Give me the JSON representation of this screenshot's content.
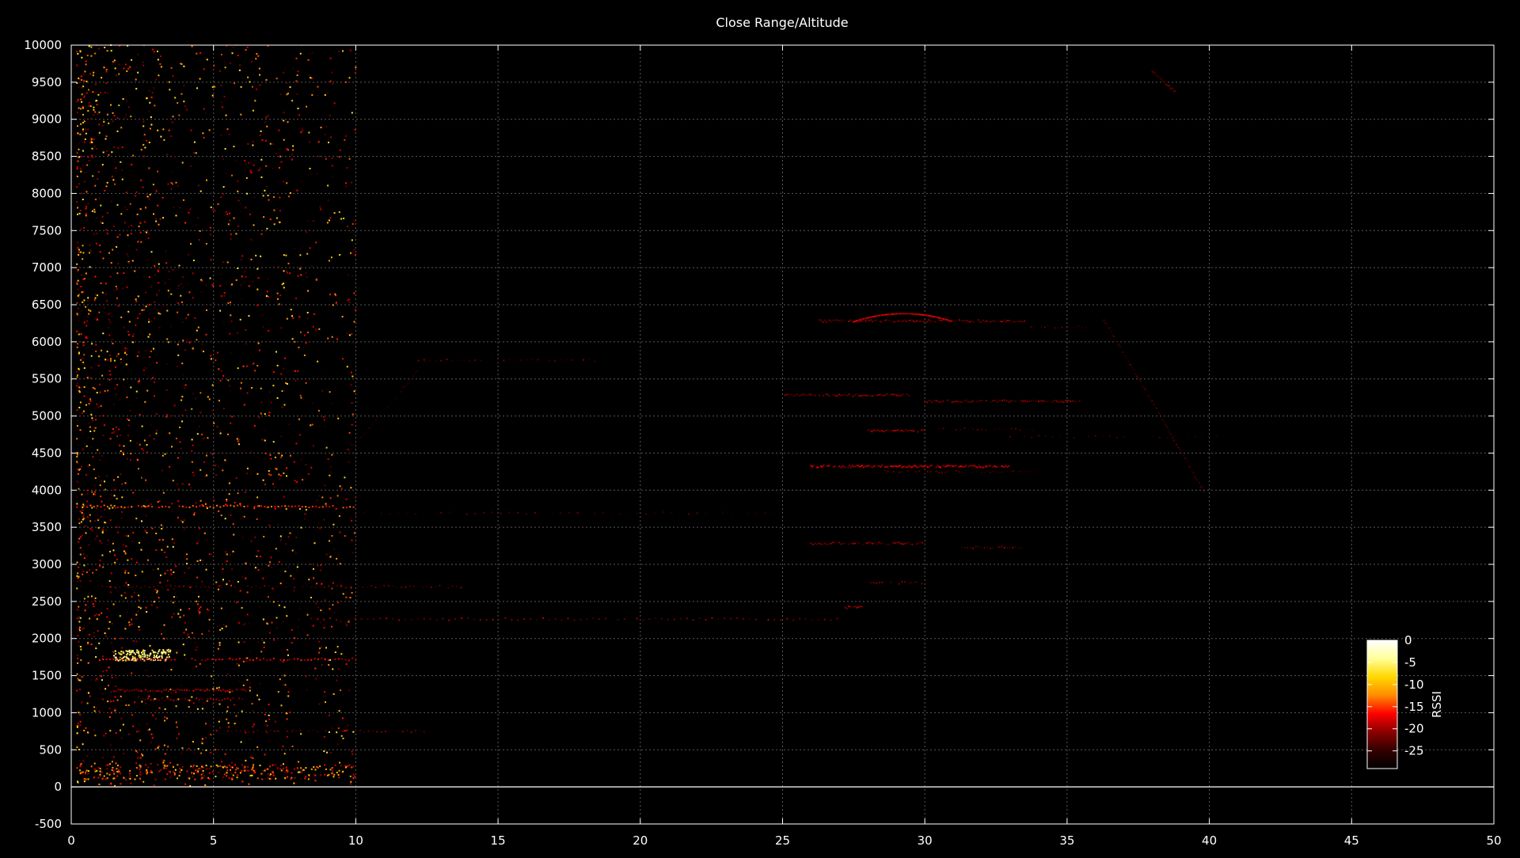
{
  "chart_data": {
    "type": "scatter",
    "title": "Close Range/Altitude",
    "xlabel": "",
    "ylabel": "",
    "xlim": [
      0,
      50
    ],
    "ylim": [
      -500,
      10000
    ],
    "x_ticks": [
      0,
      5,
      10,
      15,
      20,
      25,
      30,
      35,
      40,
      45,
      50
    ],
    "y_ticks": [
      -500,
      0,
      500,
      1000,
      1500,
      2000,
      2500,
      3000,
      3500,
      4000,
      4500,
      5000,
      5500,
      6000,
      6500,
      7000,
      7500,
      8000,
      8500,
      9000,
      9500,
      10000
    ],
    "grid": true,
    "zero_line": 0,
    "colorbar": {
      "label": "RSSI",
      "range": [
        -29,
        0
      ],
      "ticks": [
        0,
        -5,
        -10,
        -15,
        -20,
        -25
      ],
      "stops": [
        "#000000",
        "#330000",
        "#8b0000",
        "#ff0000",
        "#ff8c00",
        "#ffd700",
        "#ffff99",
        "#ffffff"
      ],
      "location": "bottom-right"
    },
    "point_seed": 20240611,
    "clusters": [
      {
        "name": "near-field scatter",
        "x_range": [
          0.2,
          10
        ],
        "y_range": [
          0,
          10000
        ],
        "count": 2600,
        "rssi_range": [
          -28,
          -6
        ],
        "density": "decreasing-with-x"
      },
      {
        "name": "low band",
        "x_range": [
          0.3,
          10
        ],
        "y_range": [
          100,
          300
        ],
        "count": 260,
        "rssi_range": [
          -22,
          -8
        ]
      },
      {
        "name": "bright core",
        "x_range": [
          1.5,
          3.5
        ],
        "y_range": [
          1700,
          1850
        ],
        "count": 140,
        "rssi_range": [
          -8,
          -2
        ]
      }
    ],
    "tracks": [
      {
        "name": "track 2260",
        "x_range": [
          8,
          27
        ],
        "y": 2260,
        "rssi": -22,
        "step": 0.22
      },
      {
        "name": "track 1300",
        "x_range": [
          1.5,
          6.2
        ],
        "y": 1300,
        "rssi": -20,
        "step": 0.08
      },
      {
        "name": "track 1180",
        "x_range": [
          2.5,
          6
        ],
        "y": 1180,
        "rssi": -21,
        "step": 0.1
      },
      {
        "name": "track 1720",
        "x_range": [
          1,
          10
        ],
        "y": 1720,
        "rssi": -18,
        "step": 0.12
      },
      {
        "name": "track 3780",
        "x_range": [
          0.2,
          10
        ],
        "y": 3780,
        "rssi": -15,
        "step": 0.12
      },
      {
        "name": "track 2700",
        "x_range": [
          0.8,
          14
        ],
        "y": 2700,
        "rssi": -24,
        "step": 0.15
      },
      {
        "name": "track 5750",
        "x_range": [
          12.2,
          18.5
        ],
        "y": 5750,
        "rssi": -24,
        "step": 0.2
      },
      {
        "name": "track 3700",
        "x_range": [
          10,
          25
        ],
        "y": 3690,
        "rssi": -25,
        "step": 0.3
      },
      {
        "name": "track 750",
        "x_range": [
          5.5,
          12.5
        ],
        "y": 750,
        "rssi": -24,
        "step": 0.15
      },
      {
        "name": "track 6280",
        "x_range": [
          26.3,
          33.5
        ],
        "y": 6280,
        "rssi": -23,
        "step": 0.06
      },
      {
        "name": "track 6200",
        "x_range": [
          33.5,
          35.7
        ],
        "y": 6200,
        "rssi": -25,
        "step": 0.12
      },
      {
        "name": "track 5280",
        "x_range": [
          25.1,
          29.5
        ],
        "y": 5280,
        "rssi": -22,
        "step": 0.07
      },
      {
        "name": "track 5200",
        "x_range": [
          30,
          35.5
        ],
        "y": 5200,
        "rssi": -22,
        "step": 0.08
      },
      {
        "name": "track 4800",
        "x_range": [
          28,
          30
        ],
        "y": 4800,
        "rssi": -21,
        "step": 0.07
      },
      {
        "name": "track 4820",
        "x_range": [
          30.5,
          34
        ],
        "y": 4820,
        "rssi": -25,
        "step": 0.15
      },
      {
        "name": "track 4720",
        "x_range": [
          32.5,
          41
        ],
        "y": 4720,
        "rssi": -26,
        "step": 0.25
      },
      {
        "name": "track 4320",
        "x_range": [
          26,
          33
        ],
        "y": 4320,
        "rssi": -20,
        "step": 0.05
      },
      {
        "name": "track 4250",
        "x_range": [
          28.5,
          34
        ],
        "y": 4250,
        "rssi": -25,
        "step": 0.1
      },
      {
        "name": "track 3280",
        "x_range": [
          26,
          30
        ],
        "y": 3280,
        "rssi": -22,
        "step": 0.07
      },
      {
        "name": "track 3230",
        "x_range": [
          31.3,
          33.5
        ],
        "y": 3230,
        "rssi": -23,
        "step": 0.1
      },
      {
        "name": "track 2750",
        "x_range": [
          28,
          30
        ],
        "y": 2750,
        "rssi": -24,
        "step": 0.1
      },
      {
        "name": "track 2420",
        "x_range": [
          27.2,
          27.8
        ],
        "y": 2420,
        "rssi": -21,
        "step": 0.06
      }
    ],
    "arcs": [
      {
        "name": "arc 6380",
        "x_range": [
          27.5,
          31
        ],
        "y_peak": 6380,
        "y_edge": 6270,
        "rssi": -19,
        "step": 0.05
      }
    ],
    "diagonals": [
      {
        "name": "descent",
        "from": [
          36.3,
          6300
        ],
        "to": [
          39.8,
          4000
        ],
        "rssi": -25,
        "step": 0.05
      },
      {
        "name": "climb",
        "from": [
          9.5,
          4400
        ],
        "to": [
          12.5,
          5750
        ],
        "rssi": -27,
        "step": 0.06
      },
      {
        "name": "upper tail",
        "from": [
          38,
          9650
        ],
        "to": [
          38.8,
          9380
        ],
        "rssi": -24,
        "step": 0.04
      }
    ]
  }
}
